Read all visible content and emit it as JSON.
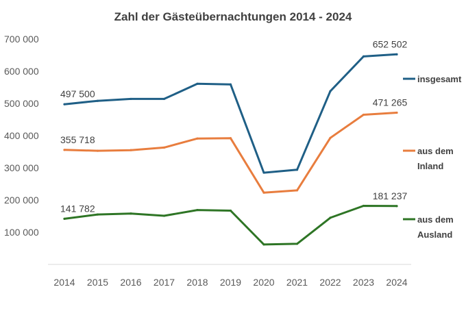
{
  "chart_data": {
    "type": "line",
    "title": "Zahl der Gästeübernachtungen 2014 - 2024",
    "xlabel": "",
    "ylabel": "",
    "categories": [
      "2014",
      "2015",
      "2016",
      "2017",
      "2018",
      "2019",
      "2020",
      "2021",
      "2022",
      "2023",
      "2024"
    ],
    "y_ticks": [
      "100 000",
      "200 000",
      "300 000",
      "400 000",
      "500 000",
      "600 000",
      "700 000"
    ],
    "y_tick_values": [
      100000,
      200000,
      300000,
      400000,
      500000,
      600000,
      700000
    ],
    "ylim": [
      0,
      700000
    ],
    "grid": false,
    "legend_position": "right",
    "series": [
      {
        "name": "insgesamt",
        "color": "#1f5f86",
        "values": [
          497500,
          508000,
          514000,
          514000,
          561000,
          559000,
          285000,
          294000,
          538000,
          646000,
          652502
        ],
        "labels": [
          {
            "index": 0,
            "text": "497 500"
          },
          {
            "index": 10,
            "text": "652 502"
          }
        ]
      },
      {
        "name": "aus dem Inland",
        "legend_lines": [
          "aus dem",
          "Inland"
        ],
        "color": "#e87d3e",
        "values": [
          355718,
          353000,
          355000,
          363000,
          391000,
          392000,
          223000,
          230000,
          393000,
          465000,
          471265
        ],
        "labels": [
          {
            "index": 0,
            "text": "355 718"
          },
          {
            "index": 10,
            "text": "471 265"
          }
        ]
      },
      {
        "name": "aus dem Ausland",
        "legend_lines": [
          "aus dem",
          "Ausland"
        ],
        "color": "#2e7525",
        "values": [
          141782,
          155000,
          158000,
          151000,
          169000,
          167000,
          62000,
          64000,
          145000,
          182000,
          181237
        ],
        "labels": [
          {
            "index": 0,
            "text": "141 782"
          },
          {
            "index": 10,
            "text": "181 237"
          }
        ]
      }
    ]
  }
}
